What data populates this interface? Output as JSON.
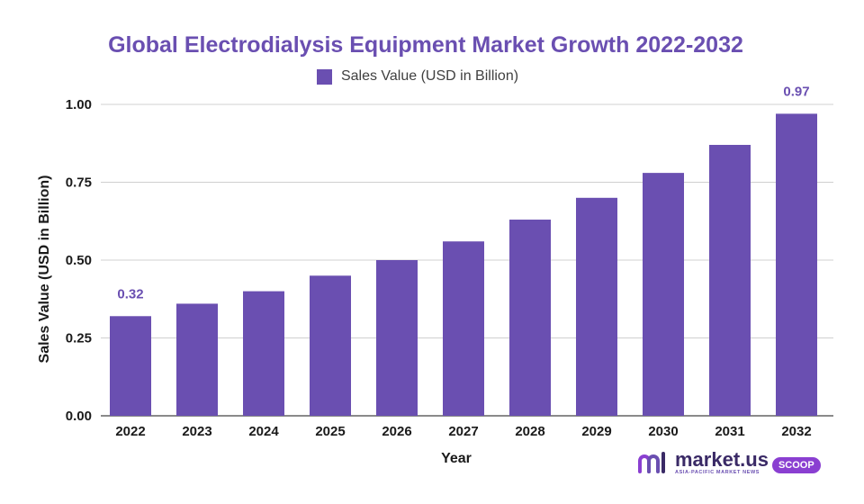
{
  "chart_data": {
    "type": "bar",
    "title": "Global Electrodialysis Equipment Market Growth 2022-2032",
    "xlabel": "Year",
    "ylabel": "Sales Value (USD in Billion)",
    "categories": [
      "2022",
      "2023",
      "2024",
      "2025",
      "2026",
      "2027",
      "2028",
      "2029",
      "2030",
      "2031",
      "2032"
    ],
    "series": [
      {
        "name": "Sales Value (USD in Billion)",
        "values": [
          0.32,
          0.36,
          0.4,
          0.45,
          0.5,
          0.56,
          0.63,
          0.7,
          0.78,
          0.87,
          0.97
        ],
        "color": "#6a4fb1"
      }
    ],
    "data_labels": [
      {
        "category": "2022",
        "text": "0.32"
      },
      {
        "category": "2032",
        "text": "0.97"
      }
    ],
    "ylim": [
      0,
      1.0
    ],
    "yticks": [
      0.0,
      0.25,
      0.5,
      0.75,
      1.0
    ],
    "ytick_labels": [
      "0.00",
      "0.25",
      "0.50",
      "0.75",
      "1.00"
    ],
    "grid": true,
    "legend_position": "top-center"
  },
  "brand": {
    "name": "market.us",
    "subtitle": "ASIA-PACIFIC MARKET NEWS",
    "badge": "SCOOP"
  }
}
